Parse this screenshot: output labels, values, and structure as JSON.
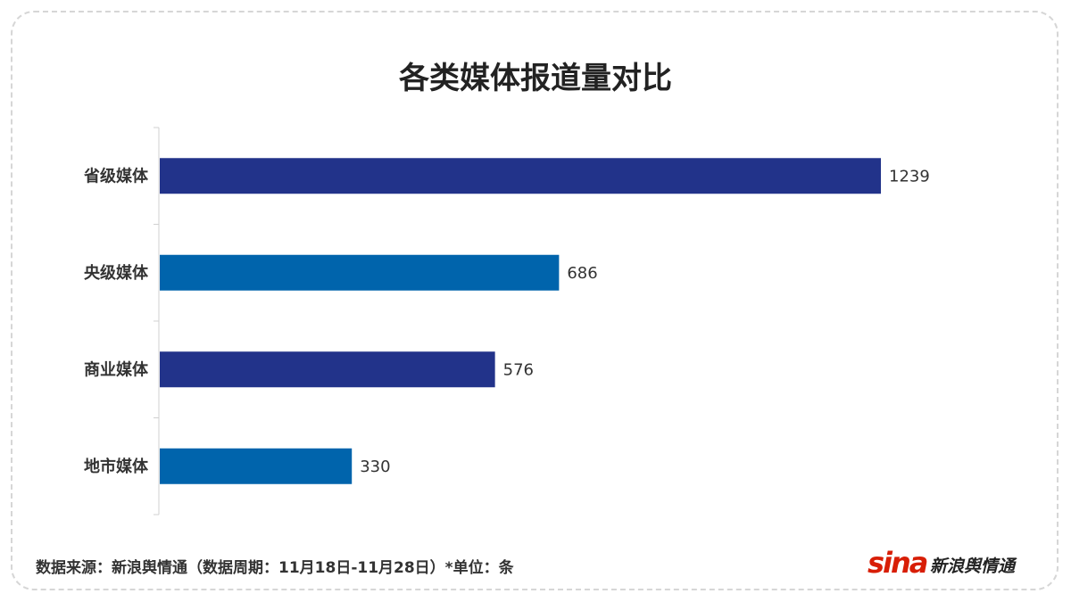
{
  "chart_data": {
    "type": "bar",
    "orientation": "horizontal",
    "title": "各类媒体报道量对比",
    "categories": [
      "省级媒体",
      "央级媒体",
      "商业媒体",
      "地市媒体"
    ],
    "values": [
      1239,
      686,
      576,
      330
    ],
    "colors": [
      "#22338a",
      "#0064ac",
      "#22338a",
      "#0064ac"
    ],
    "xlim": [
      0,
      1239
    ]
  },
  "footer": {
    "source": "数据来源：新浪舆情通（数据周期：11月18日-11月28日）*单位：条"
  },
  "logo": {
    "mark": "sina",
    "text": "新浪舆情通"
  }
}
